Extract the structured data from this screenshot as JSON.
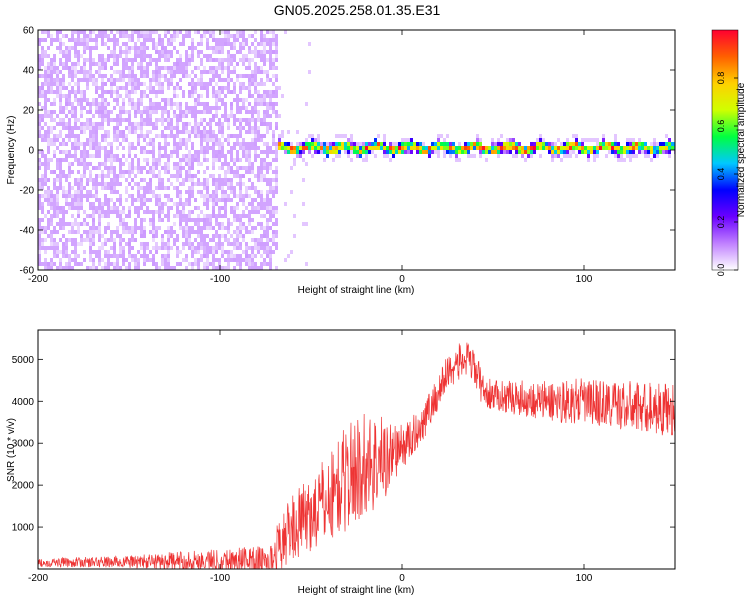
{
  "title": "GN05.2025.258.01.35.E31",
  "chart_data": [
    {
      "type": "heatmap",
      "name": "spectrogram",
      "xlabel": "Height of straight line (km)",
      "ylabel": "Frequency (Hz)",
      "xlim": [
        -200,
        150
      ],
      "ylim": [
        -60,
        60
      ],
      "xticks": [
        -200,
        -100,
        0,
        100
      ],
      "xtick_labels": [
        "-200",
        "-100",
        "0",
        "100"
      ],
      "yticks": [
        -60,
        -40,
        -20,
        0,
        20,
        40,
        60
      ],
      "ytick_labels": [
        "-60",
        "-40",
        "-20",
        "0",
        "20",
        "40",
        "60"
      ],
      "colorbar": {
        "label": "Normalized spectral amplitude",
        "range": [
          0,
          1
        ],
        "ticks": [
          0,
          0.2,
          0.4,
          0.6,
          0.8
        ],
        "tick_labels": [
          "0.0",
          "0.2",
          "0.4",
          "0.6",
          "0.8"
        ],
        "colors": [
          "#ffffff",
          "#c080ff",
          "#6a00ff",
          "#0000ff",
          "#00c8ff",
          "#00ff40",
          "#d0ff00",
          "#ffd000",
          "#ff6000",
          "#ff0030"
        ]
      },
      "features": {
        "noise_region_x": [
          -200,
          -68
        ],
        "noise_amplitude": 0.15,
        "signal_start_x": -68,
        "signal_frequency_hz": 1,
        "signal_halfwidth_hz": 3,
        "signal_peak_amplitude": 0.95
      }
    },
    {
      "type": "line",
      "name": "snr",
      "xlabel": "Height of straight line (km)",
      "ylabel": "SNR (10 * v/v)",
      "xlim": [
        -200,
        150
      ],
      "ylim": [
        0,
        5700
      ],
      "xticks": [
        -200,
        -100,
        0,
        100
      ],
      "xtick_labels": [
        "-200",
        "-100",
        "0",
        "100"
      ],
      "yticks": [
        1000,
        2000,
        3000,
        4000,
        5000
      ],
      "ytick_labels": [
        "1000",
        "2000",
        "3000",
        "4000",
        "5000"
      ],
      "color": "#ee3333",
      "series": [
        {
          "name": "SNR",
          "x": [
            -200,
            -150,
            -100,
            -72,
            -68,
            -60,
            -50,
            -40,
            -30,
            -20,
            -10,
            -5,
            0,
            5,
            10,
            20,
            25,
            30,
            35,
            40,
            45,
            50,
            60,
            80,
            100,
            120,
            150
          ],
          "y": [
            150,
            170,
            200,
            220,
            550,
            1000,
            1300,
            1700,
            2200,
            2500,
            2600,
            2800,
            2900,
            3100,
            3400,
            4200,
            4700,
            4900,
            5000,
            4800,
            4200,
            4150,
            4100,
            4000,
            4000,
            3900,
            3800
          ],
          "noise_band": [
            100,
            150,
            300,
            350,
            600,
            800,
            900,
            1100,
            1300,
            1300,
            1100,
            700,
            550,
            500,
            450,
            450,
            450,
            450,
            450,
            450,
            400,
            350,
            400,
            500,
            550,
            600,
            650
          ]
        }
      ]
    }
  ]
}
